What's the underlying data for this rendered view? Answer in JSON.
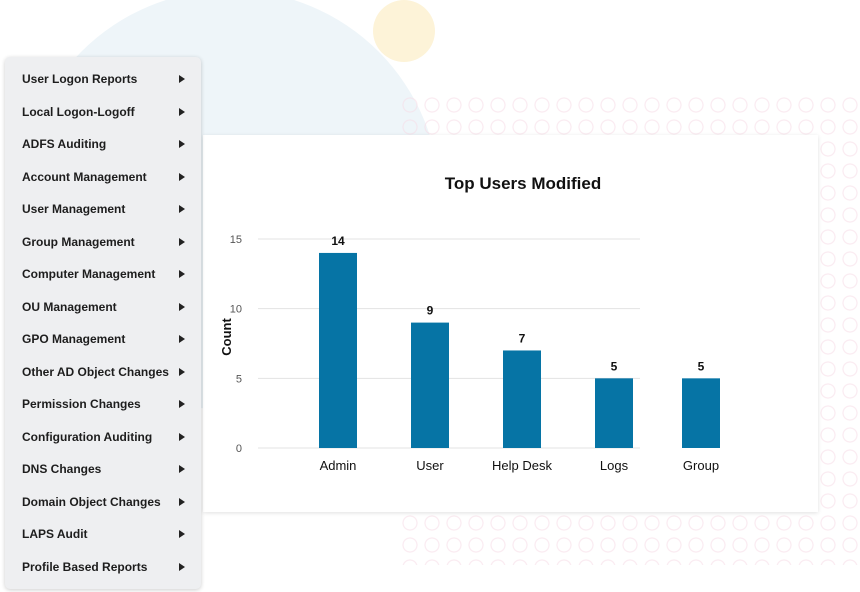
{
  "menu": {
    "items": [
      {
        "label": "User Logon Reports"
      },
      {
        "label": "Local Logon-Logoff"
      },
      {
        "label": "ADFS Auditing"
      },
      {
        "label": "Account Management"
      },
      {
        "label": "User Management"
      },
      {
        "label": "Group Management"
      },
      {
        "label": "Computer Management"
      },
      {
        "label": "OU Management"
      },
      {
        "label": "GPO Management"
      },
      {
        "label": "Other AD Object Changes"
      },
      {
        "label": "Permission Changes"
      },
      {
        "label": "Configuration Auditing"
      },
      {
        "label": "DNS Changes"
      },
      {
        "label": "Domain Object Changes"
      },
      {
        "label": "LAPS Audit"
      },
      {
        "label": "Profile Based Reports"
      }
    ]
  },
  "colors": {
    "bar": "#0674a5",
    "grid": "#e3e3e3"
  },
  "chart_data": {
    "type": "bar",
    "title": "Top Users Modified",
    "xlabel": "",
    "ylabel": "Count",
    "categories": [
      "Admin",
      "User",
      "Help Desk",
      "Logs",
      "Group"
    ],
    "values": [
      14,
      9,
      7,
      5,
      5
    ],
    "data_labels": [
      "14",
      "9",
      "7",
      "5",
      "5"
    ],
    "ylim": [
      0,
      15
    ],
    "yticks": [
      0,
      5,
      10,
      15
    ],
    "ytick_labels": [
      "0",
      "5",
      "10",
      "15"
    ],
    "grid": true,
    "legend": "none"
  }
}
